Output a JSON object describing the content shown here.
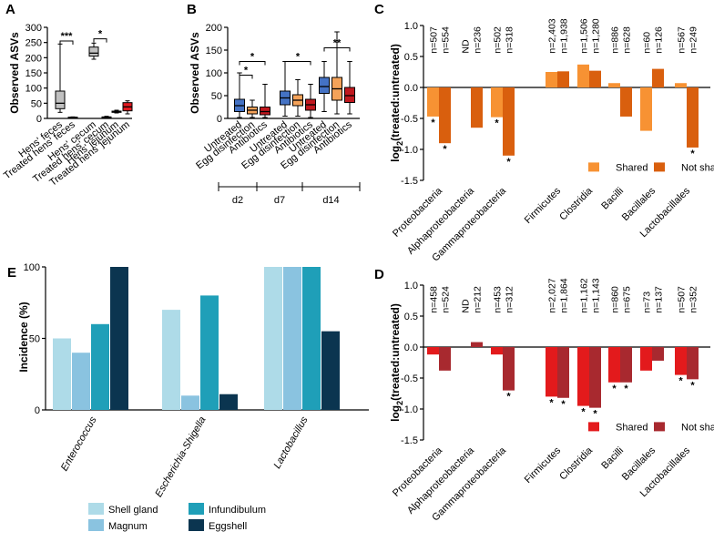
{
  "chart_data": [
    {
      "panel": "A",
      "type": "box",
      "ylabel": "Observed ASVs",
      "ylim": [
        0,
        300
      ],
      "yticks": [
        0,
        50,
        100,
        150,
        200,
        250,
        300
      ],
      "categories": [
        "Hens' feces",
        "Treated hens' feces",
        "Hens' cecum",
        "Treated hens' cecum",
        "Hens' jejunum",
        "Treated hens' jejunum"
      ],
      "boxes": [
        {
          "min": 20,
          "q1": 32,
          "median": 50,
          "q3": 90,
          "max": 245,
          "color": "#c0c0c0"
        },
        {
          "min": 1,
          "q1": 2,
          "median": 3,
          "q3": 4,
          "max": 5,
          "color": "#c0c0c0"
        },
        {
          "min": 195,
          "q1": 205,
          "median": 215,
          "q3": 235,
          "max": 248,
          "color": "#c0c0c0"
        },
        {
          "min": 2,
          "q1": 3,
          "median": 4,
          "q3": 5,
          "max": 7,
          "color": "#c0c0c0"
        },
        {
          "min": 18,
          "q1": 20,
          "median": 22,
          "q3": 24,
          "max": 27,
          "color": "#c0c0c0"
        },
        {
          "min": 15,
          "q1": 25,
          "median": 38,
          "q3": 52,
          "max": 58,
          "color": "#e0191f"
        }
      ],
      "significance": [
        {
          "pair": [
            0,
            1
          ],
          "label": "***",
          "y": 255
        },
        {
          "pair": [
            2,
            3
          ],
          "label": "*",
          "y": 262
        }
      ]
    },
    {
      "panel": "B",
      "type": "box",
      "ylabel": "Observed ASVs",
      "ylim": [
        0,
        200
      ],
      "yticks": [
        0,
        50,
        100,
        150,
        200
      ],
      "categories": [
        "Untreated",
        "Egg disinfection",
        "Antibiotics"
      ],
      "groups": [
        "d2",
        "d7",
        "d14"
      ],
      "group_colors": [
        "#4472c4",
        "#f4a259",
        "#c0181e"
      ],
      "boxes": [
        [
          {
            "min": 2,
            "q1": 15,
            "median": 28,
            "q3": 42,
            "max": 100
          },
          {
            "min": 2,
            "q1": 10,
            "median": 18,
            "q3": 25,
            "max": 40
          },
          {
            "min": 2,
            "q1": 8,
            "median": 15,
            "q3": 25,
            "max": 75
          }
        ],
        [
          {
            "min": 5,
            "q1": 30,
            "median": 45,
            "q3": 60,
            "max": 125
          },
          {
            "min": 5,
            "q1": 28,
            "median": 40,
            "q3": 52,
            "max": 85
          },
          {
            "min": 2,
            "q1": 18,
            "median": 30,
            "q3": 42,
            "max": 75
          }
        ],
        [
          {
            "min": 15,
            "q1": 55,
            "median": 70,
            "q3": 90,
            "max": 125
          },
          {
            "min": 10,
            "q1": 40,
            "median": 65,
            "q3": 90,
            "max": 190
          },
          {
            "min": 10,
            "q1": 35,
            "median": 50,
            "q3": 68,
            "max": 125
          }
        ]
      ],
      "significance": [
        {
          "group": 0,
          "pair": [
            0,
            1
          ],
          "label": "*",
          "y": 95
        },
        {
          "group": 0,
          "pair": [
            0,
            2
          ],
          "label": "*",
          "y": 125
        },
        {
          "group": 1,
          "pair": [
            0,
            2
          ],
          "label": "*",
          "y": 125
        },
        {
          "group": 2,
          "pair": [
            0,
            2
          ],
          "label": "**",
          "y": 155
        }
      ]
    },
    {
      "panel": "C",
      "type": "bar",
      "ylabel": "log2(treated:untreated)",
      "ylim": [
        -1.5,
        1.0
      ],
      "yticks": [
        1.0,
        0.5,
        0.0,
        -0.5,
        -1.0,
        -1.5
      ],
      "categories": [
        "Proteobacteria",
        "Alphaproteobacteria",
        "Gammaproteobacteria",
        "Firmicutes",
        "Clostridia",
        "Bacilli",
        "Bacillales",
        "Lactobacillales"
      ],
      "series": [
        {
          "name": "Shared",
          "color": "#f79233",
          "values": [
            -0.47,
            null,
            -0.48,
            0.25,
            0.37,
            0.07,
            -0.7,
            0.07
          ],
          "n": [
            "n=507",
            "ND",
            "n=502",
            "n=2,403",
            "n=1,506",
            "n=886",
            "n=60",
            "n=567"
          ],
          "stars": [
            "*",
            "",
            "*",
            "",
            "",
            "",
            "",
            ""
          ]
        },
        {
          "name": "Not shared",
          "color": "#d95f0e",
          "values": [
            -0.9,
            -0.65,
            -1.1,
            0.26,
            0.27,
            -0.47,
            0.3,
            -0.97
          ],
          "n": [
            "n=554",
            "n=236",
            "n=318",
            "n=1,938",
            "n=1,280",
            "n=628",
            "n=126",
            "n=249"
          ],
          "stars": [
            "*",
            "",
            "*",
            "",
            "",
            "",
            "",
            "*"
          ]
        }
      ],
      "legend": "bottom-right"
    },
    {
      "panel": "D",
      "type": "bar",
      "ylabel": "log2(treated:untreated)",
      "ylim": [
        -1.5,
        1.0
      ],
      "yticks": [
        1.0,
        0.5,
        0.0,
        -0.5,
        -1.0,
        -1.5
      ],
      "categories": [
        "Proteobacteria",
        "Alphaproteobacteria",
        "Gammaproteobacteria",
        "Firmicutes",
        "Clostridia",
        "Bacilli",
        "Bacillales",
        "Lactobacillales"
      ],
      "series": [
        {
          "name": "Shared",
          "color": "#e31a1c",
          "values": [
            -0.12,
            null,
            -0.12,
            -0.8,
            -0.95,
            -0.57,
            -0.38,
            -0.45
          ],
          "n": [
            "n=458",
            "ND",
            "n=453",
            "n=2,027",
            "n=1,162",
            "n=860",
            "n=73",
            "n=507"
          ],
          "stars": [
            "",
            "",
            "",
            "*",
            "*",
            "*",
            "",
            "*"
          ]
        },
        {
          "name": "Not shared",
          "color": "#a8292f",
          "values": [
            -0.38,
            0.08,
            -0.7,
            -0.82,
            -0.98,
            -0.57,
            -0.22,
            -0.52
          ],
          "n": [
            "n=524",
            "n=212",
            "n=312",
            "n=1,864",
            "n=1,143",
            "n=675",
            "n=137",
            "n=352"
          ],
          "stars": [
            "",
            "",
            "*",
            "*",
            "*",
            "*",
            "",
            "*"
          ]
        }
      ],
      "legend": "bottom-right"
    },
    {
      "panel": "E",
      "type": "bar",
      "ylabel": "Incidence (%)",
      "ylim": [
        0,
        100
      ],
      "yticks": [
        0,
        50,
        100
      ],
      "categories": [
        "Enterococcus",
        "Escherichia-Shigella",
        "Lactobacillus"
      ],
      "series": [
        {
          "name": "Shell gland",
          "color": "#aedbe8",
          "values": [
            50,
            70,
            100
          ]
        },
        {
          "name": "Magnum",
          "color": "#8ac3e0",
          "values": [
            40,
            10,
            100
          ]
        },
        {
          "name": "Infundibulum",
          "color": "#1f9fb8",
          "values": [
            60,
            80,
            100
          ]
        },
        {
          "name": "Eggshell",
          "color": "#0b3550",
          "values": [
            100,
            11,
            55
          ]
        }
      ],
      "legend": "bottom"
    }
  ]
}
